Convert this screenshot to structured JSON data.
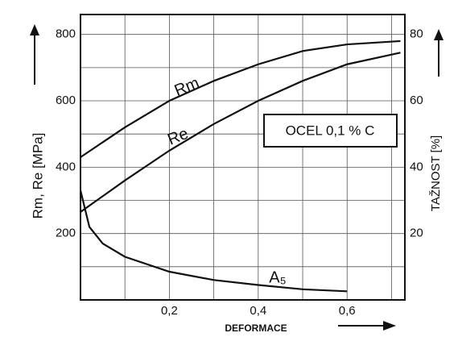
{
  "chart_data": {
    "type": "line",
    "x_label": "DEFORMACE",
    "y_label": "Rm, Re [MPa]",
    "y2_label": "TAŽNOST [%]",
    "annotation": "OCEL 0,1 % C",
    "x": [
      0,
      0.1,
      0.2,
      0.3,
      0.4,
      0.5,
      0.6,
      0.72
    ],
    "series": [
      {
        "name": "Rm",
        "color": "#111111",
        "values": [
          430,
          520,
          600,
          660,
          710,
          750,
          770,
          780
        ]
      },
      {
        "name": "Re",
        "color": "#111111",
        "values": [
          265,
          360,
          450,
          530,
          600,
          660,
          710,
          745
        ]
      }
    ],
    "series2": {
      "name": "A₅",
      "color": "#111111",
      "axis": "y2",
      "x": [
        0,
        0.02,
        0.05,
        0.1,
        0.2,
        0.3,
        0.4,
        0.5,
        0.6
      ],
      "values": [
        33,
        22,
        17,
        13,
        8.5,
        6,
        4.5,
        3.2,
        2.6
      ]
    },
    "xlim": [
      0,
      0.73
    ],
    "xticks": [
      {
        "value": 0.2,
        "label": "0,2"
      },
      {
        "value": 0.4,
        "label": "0,4"
      },
      {
        "value": 0.6,
        "label": "0,6"
      }
    ],
    "xgrid": [
      0.1,
      0.2,
      0.3,
      0.4,
      0.5,
      0.6,
      0.7
    ],
    "ylim": [
      0,
      860
    ],
    "yticks": [
      200,
      400,
      600,
      800
    ],
    "ygrid": [
      100,
      200,
      300,
      400,
      500,
      600,
      700,
      800
    ],
    "y2lim": [
      0,
      86
    ],
    "y2ticks": [
      20,
      40,
      60,
      80
    ],
    "grid": true
  }
}
